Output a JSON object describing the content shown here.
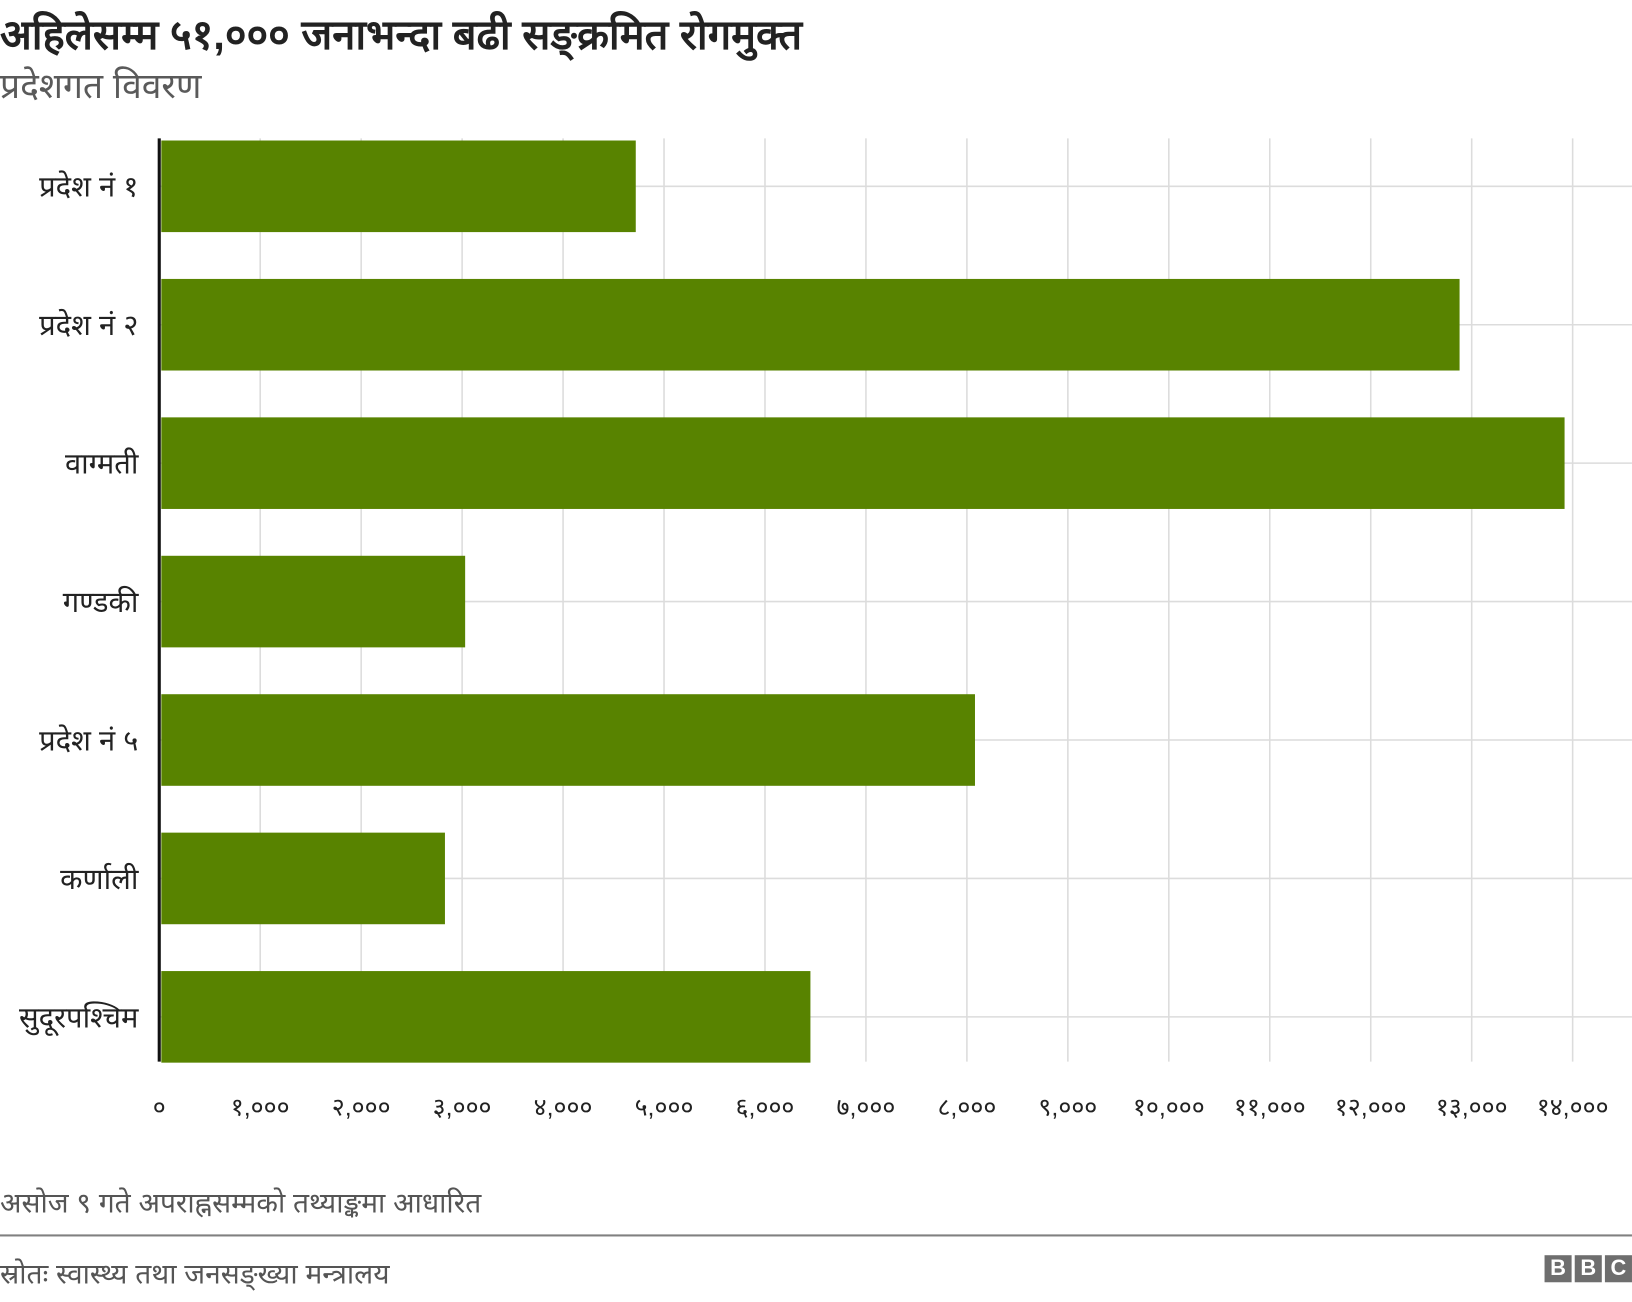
{
  "title": "अहिलेसम्म ५१,००० जनाभन्दा बढी सङ्क्रमित रोगमुक्त",
  "subtitle": "प्रदेशगत विवरण",
  "note": "असोज ९ गते अपराह्नसम्मको तथ्याङ्कमा आधारित",
  "source": "स्रोतः स्वास्थ्य तथा जनसङ्ख्या मन्त्रालय",
  "logo": [
    "B",
    "B",
    "C"
  ],
  "chart_data": {
    "type": "bar",
    "orientation": "horizontal",
    "categories": [
      "प्रदेश नं १",
      "प्रदेश नं २",
      "वाग्मती",
      "गण्डकी",
      "प्रदेश नं ५",
      "कर्णाली",
      "सुदूरपश्चिम"
    ],
    "values": [
      4720,
      12880,
      13920,
      3030,
      8080,
      2830,
      6450
    ],
    "xlim": [
      0,
      14000
    ],
    "xticks": [
      0,
      1000,
      2000,
      3000,
      4000,
      5000,
      6000,
      7000,
      8000,
      9000,
      10000,
      11000,
      12000,
      13000,
      14000
    ],
    "xtick_labels": [
      "०",
      "१,०००",
      "२,०००",
      "३,०००",
      "४,०००",
      "५,०००",
      "६,०००",
      "७,०००",
      "८,०००",
      "९,०००",
      "१०,०००",
      "११,०००",
      "१२,०००",
      "१३,०००",
      "१४,०००"
    ],
    "grid": true,
    "bar_color": "#588300",
    "grid_color": "#dcdcdc"
  }
}
